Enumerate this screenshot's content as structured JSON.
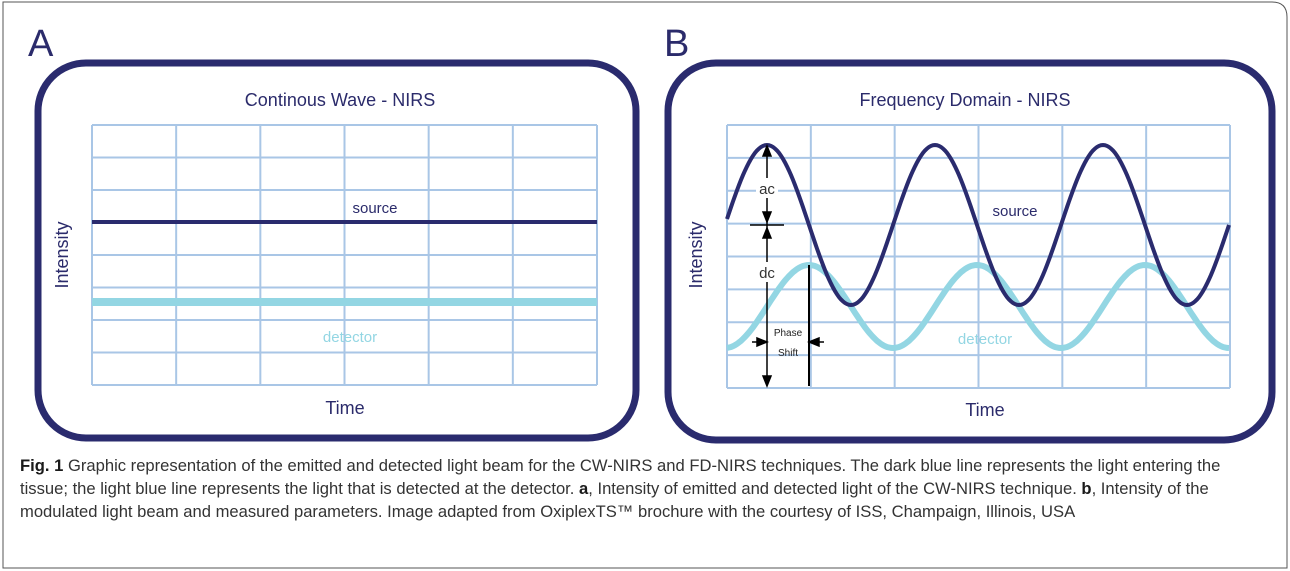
{
  "panels": [
    {
      "letter": "A",
      "title": "Continous Wave - NIRS",
      "y_label": "Intensity",
      "x_label": "Time",
      "source_label": "source",
      "detector_label": "detector"
    },
    {
      "letter": "B",
      "title": "Frequency Domain - NIRS",
      "y_label": "Intensity",
      "x_label": "Time",
      "source_label": "source",
      "detector_label": "detector",
      "ac_label": "ac",
      "dc_label": "dc",
      "phase_label_1": "Phase",
      "phase_label_2": "Shift"
    }
  ],
  "caption": {
    "label": "Fig. 1",
    "text_1": " Graphic representation of the emitted and detected light beam for the CW-NIRS and FD-NIRS techniques. The dark blue line represents the light entering the tissue; the light blue line represents the light that is detected at the detector. ",
    "bold_a": "a",
    "text_2": ", Intensity of emitted and detected light of the CW-NIRS technique. ",
    "bold_b": "b",
    "text_3": ", Intensity of the modulated light beam and measured parameters. Image adapted from OxiplexTS™ brochure with the courtesy of ISS, Champaign, Illinois, USA"
  }
}
